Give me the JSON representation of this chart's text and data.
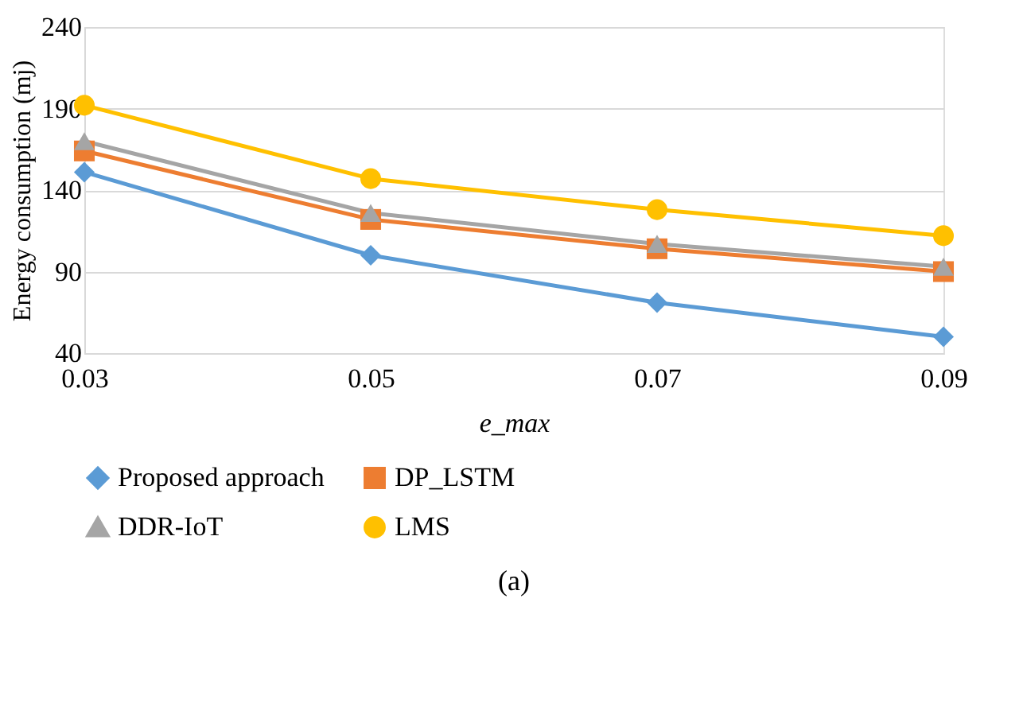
{
  "chart_data": {
    "type": "line",
    "xlabel": "e_max",
    "ylabel": "Energy consumption (mj)",
    "categories": [
      "0.03",
      "0.05",
      "0.07",
      "0.09"
    ],
    "series": [
      {
        "name": "Proposed approach",
        "color": "#5b9bd5",
        "marker": "diamond",
        "values": [
          151,
          100,
          71,
          50
        ]
      },
      {
        "name": "DP_LSTM",
        "color": "#ed7d31",
        "marker": "square",
        "values": [
          164,
          122,
          104,
          90
        ]
      },
      {
        "name": "DDR-IoT",
        "color": "#a5a5a5",
        "marker": "triangle",
        "values": [
          170,
          126,
          107,
          93
        ]
      },
      {
        "name": "LMS",
        "color": "#ffc000",
        "marker": "circle",
        "values": [
          192,
          147,
          128,
          112
        ]
      }
    ],
    "ylim": [
      40,
      240
    ],
    "yticks": [
      40,
      90,
      140,
      190,
      240
    ],
    "grid": "y",
    "legend": "bottom",
    "line_style": "solid",
    "annotations": [
      "(a)"
    ]
  }
}
